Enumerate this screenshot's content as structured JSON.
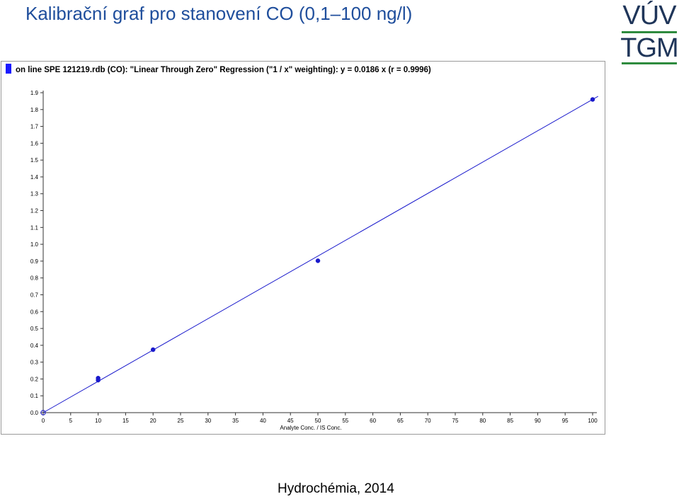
{
  "slide": {
    "title": "Kalibrační graf pro stanovení CO  (0,1–100 ng/l)",
    "footer": "Hydrochémia, 2014"
  },
  "logo": {
    "line1": "VÚV",
    "line2": "TGM",
    "text_color": "#1f3559",
    "bar_color": "#2e8b3e"
  },
  "chart_data": {
    "type": "scatter",
    "title": "on line SPE 121219.rdb (CO): \"Linear Through Zero\" Regression (\"1 / x\" weighting): y = 0.0186 x (r = 0.9996)",
    "xlabel": "Analyte Conc. / IS Conc.",
    "ylabel": "",
    "xlim": [
      0,
      100
    ],
    "ylim": [
      0,
      1.9
    ],
    "x_ticks": [
      0,
      5,
      10,
      15,
      20,
      25,
      30,
      35,
      40,
      45,
      50,
      55,
      60,
      65,
      70,
      75,
      80,
      85,
      90,
      95,
      100
    ],
    "y_ticks": [
      0.0,
      0.1,
      0.2,
      0.3,
      0.4,
      0.5,
      0.6,
      0.7,
      0.8,
      0.9,
      1.0,
      1.1,
      1.2,
      1.3,
      1.4,
      1.5,
      1.6,
      1.7,
      1.8,
      1.9
    ],
    "grid": false,
    "regression": {
      "slope": 0.0186,
      "intercept": 0,
      "x_end": 101
    },
    "points": [
      {
        "x": 0,
        "y": 0,
        "style": "open"
      },
      {
        "x": 10,
        "y": 0.193,
        "style": "filled"
      },
      {
        "x": 10,
        "y": 0.205,
        "style": "filled"
      },
      {
        "x": 20,
        "y": 0.374,
        "style": "filled"
      },
      {
        "x": 50,
        "y": 0.902,
        "style": "filled"
      },
      {
        "x": 100,
        "y": 1.86,
        "style": "filled"
      }
    ],
    "colors": {
      "line": "#1a1acc",
      "point": "#1a1acc",
      "axis": "#333333",
      "title_marker": "#1a1aff"
    }
  }
}
